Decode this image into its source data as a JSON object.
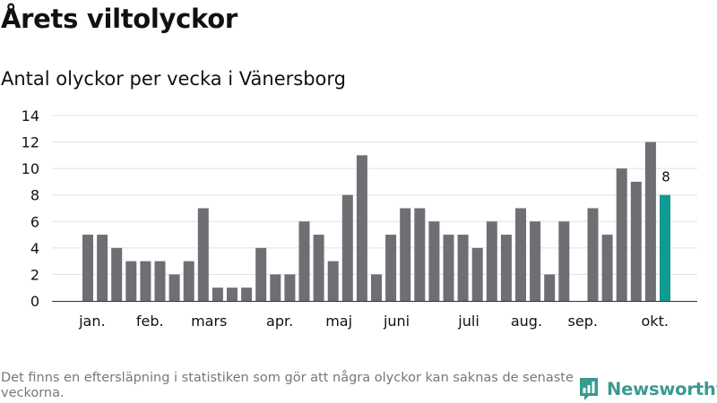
{
  "title": "Årets viltolyckor",
  "subtitle": "Antal olyckor per vecka i Vänersborg",
  "footnote": "Det finns en eftersläpning i statistiken som gör att några olyckor kan saknas de senaste veckorna.",
  "brand": {
    "name": "Newsworthy",
    "color": "#3a9a8e"
  },
  "colors": {
    "bar": "#6f6e73",
    "highlight": "#119a92",
    "grid": "#e0e0e0",
    "axis": "#333333"
  },
  "chart_data": {
    "type": "bar",
    "title": "Antal olyckor per vecka i Vänersborg",
    "xlabel": "",
    "ylabel": "",
    "ylim": [
      0,
      14
    ],
    "yticks": [
      0,
      2,
      4,
      6,
      8,
      10,
      12,
      14
    ],
    "grid": true,
    "weeks": [
      1,
      2,
      3,
      4,
      5,
      6,
      7,
      8,
      9,
      10,
      11,
      12,
      13,
      14,
      15,
      16,
      17,
      18,
      19,
      20,
      21,
      22,
      23,
      24,
      25,
      26,
      27,
      28,
      29,
      30,
      31,
      32,
      33,
      34,
      35,
      36,
      37,
      38,
      39,
      40,
      41
    ],
    "values": [
      5,
      5,
      4,
      3,
      3,
      3,
      2,
      3,
      7,
      1,
      1,
      1,
      4,
      2,
      2,
      6,
      5,
      3,
      8,
      11,
      2,
      5,
      7,
      7,
      6,
      5,
      5,
      4,
      6,
      5,
      7,
      6,
      2,
      6,
      0,
      7,
      5,
      10,
      9,
      12,
      8
    ],
    "highlight_index": 40,
    "highlight_label": "8",
    "month_labels": [
      {
        "label": "jan.",
        "week": 1.3
      },
      {
        "label": "feb.",
        "week": 5.3
      },
      {
        "label": "mars",
        "week": 9.4
      },
      {
        "label": "apr.",
        "week": 14.3
      },
      {
        "label": "maj",
        "week": 18.4
      },
      {
        "label": "juni",
        "week": 22.4
      },
      {
        "label": "juli",
        "week": 27.4
      },
      {
        "label": "aug.",
        "week": 31.4
      },
      {
        "label": "sep.",
        "week": 35.3
      },
      {
        "label": "okt.",
        "week": 40.3
      }
    ]
  }
}
